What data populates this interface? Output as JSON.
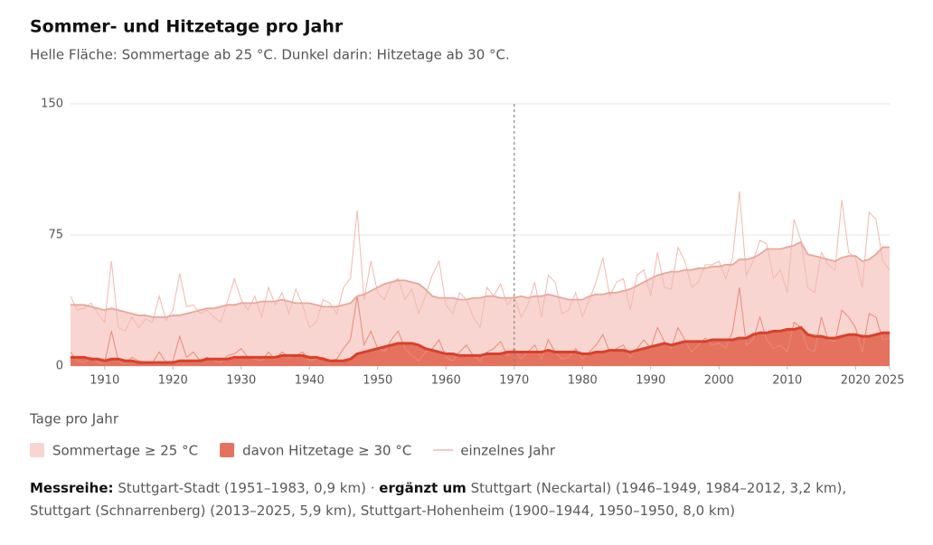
{
  "chart_data": {
    "type": "area",
    "title": "Sommer- und Hitzetage pro Jahr",
    "subtitle": "Helle Fläche: Sommertage ab 25 °C. Dunkel darin: Hitzetage ab 30 °C.",
    "y_label": "Tage pro Jahr",
    "x": [
      1905,
      1906,
      1907,
      1908,
      1909,
      1910,
      1911,
      1912,
      1913,
      1914,
      1915,
      1916,
      1917,
      1918,
      1919,
      1920,
      1921,
      1922,
      1923,
      1924,
      1925,
      1926,
      1927,
      1928,
      1929,
      1930,
      1931,
      1932,
      1933,
      1934,
      1935,
      1936,
      1937,
      1938,
      1939,
      1940,
      1941,
      1942,
      1943,
      1944,
      1945,
      1946,
      1947,
      1948,
      1949,
      1950,
      1951,
      1952,
      1953,
      1954,
      1955,
      1956,
      1957,
      1958,
      1959,
      1960,
      1961,
      1962,
      1963,
      1964,
      1965,
      1966,
      1967,
      1968,
      1969,
      1970,
      1971,
      1972,
      1973,
      1974,
      1975,
      1976,
      1977,
      1978,
      1979,
      1980,
      1981,
      1982,
      1983,
      1984,
      1985,
      1986,
      1987,
      1988,
      1989,
      1990,
      1991,
      1992,
      1993,
      1994,
      1995,
      1996,
      1997,
      1998,
      1999,
      2000,
      2001,
      2002,
      2003,
      2004,
      2005,
      2006,
      2007,
      2008,
      2009,
      2010,
      2011,
      2012,
      2013,
      2014,
      2015,
      2016,
      2017,
      2018,
      2019,
      2020,
      2021,
      2022,
      2023,
      2024,
      2025
    ],
    "xlim": [
      1905,
      2025
    ],
    "xticks": [
      1910,
      1920,
      1930,
      1940,
      1950,
      1960,
      1970,
      1980,
      1990,
      2000,
      2010,
      2020,
      2025
    ],
    "ylim": [
      0,
      150
    ],
    "yticks": [
      0,
      75,
      150
    ],
    "grid": true,
    "vline_x": 1970,
    "yearly_legend": "einzelnes Jahr",
    "series": [
      {
        "name": "Sommertage ≥ 25 °C",
        "color": "#f8d5d0",
        "line_color": "#e9a69c",
        "yearly_color": "#f1b8b0",
        "values": [
          35,
          35,
          35,
          34,
          33,
          32,
          33,
          32,
          31,
          30,
          29,
          29,
          28,
          28,
          28,
          29,
          29,
          30,
          31,
          32,
          33,
          33,
          34,
          35,
          35,
          36,
          36,
          36,
          37,
          37,
          37,
          38,
          37,
          36,
          36,
          36,
          35,
          34,
          34,
          34,
          35,
          36,
          40,
          41,
          43,
          45,
          47,
          48,
          49,
          49,
          48,
          47,
          44,
          40,
          39,
          39,
          39,
          38,
          38,
          39,
          39,
          40,
          40,
          39,
          39,
          39,
          40,
          39,
          40,
          40,
          41,
          40,
          39,
          38,
          38,
          38,
          40,
          41,
          41,
          42,
          42,
          43,
          44,
          46,
          48,
          50,
          52,
          53,
          54,
          54,
          55,
          55,
          56,
          56,
          57,
          57,
          58,
          58,
          61,
          61,
          62,
          64,
          67,
          67,
          67,
          68,
          69,
          71,
          64,
          63,
          62,
          61,
          60,
          62,
          63,
          63,
          60,
          61,
          64,
          68,
          68
        ],
        "yearly": [
          40,
          32,
          33,
          36,
          30,
          25,
          60,
          22,
          20,
          28,
          22,
          27,
          25,
          40,
          26,
          32,
          53,
          34,
          35,
          30,
          32,
          28,
          25,
          37,
          50,
          38,
          32,
          40,
          28,
          45,
          35,
          42,
          30,
          44,
          35,
          22,
          25,
          38,
          36,
          30,
          45,
          50,
          89,
          38,
          60,
          42,
          38,
          48,
          50,
          38,
          44,
          30,
          40,
          52,
          60,
          35,
          30,
          42,
          38,
          28,
          22,
          45,
          40,
          47,
          35,
          40,
          28,
          35,
          48,
          28,
          52,
          48,
          30,
          32,
          42,
          28,
          38,
          48,
          62,
          40,
          48,
          50,
          32,
          52,
          55,
          40,
          65,
          45,
          44,
          68,
          60,
          45,
          48,
          58,
          58,
          60,
          50,
          62,
          100,
          52,
          60,
          72,
          70,
          50,
          55,
          42,
          84,
          72,
          45,
          42,
          65,
          58,
          55,
          95,
          65,
          62,
          45,
          88,
          84,
          60,
          55
        ]
      },
      {
        "name": "davon Hitzetage ≥ 30 °C",
        "color": "#e4725e",
        "line_color": "#d8412c",
        "yearly_color": "#e98a7b",
        "values": [
          5,
          5,
          5,
          4,
          4,
          3,
          4,
          4,
          3,
          3,
          2,
          2,
          2,
          2,
          2,
          2,
          3,
          3,
          3,
          3,
          4,
          4,
          4,
          4,
          5,
          5,
          5,
          5,
          5,
          5,
          5,
          6,
          6,
          6,
          6,
          5,
          5,
          4,
          3,
          3,
          3,
          4,
          7,
          8,
          9,
          10,
          11,
          12,
          13,
          13,
          13,
          12,
          10,
          9,
          8,
          7,
          7,
          6,
          6,
          6,
          6,
          7,
          7,
          7,
          8,
          8,
          8,
          8,
          8,
          8,
          9,
          8,
          8,
          8,
          8,
          7,
          7,
          8,
          8,
          9,
          9,
          9,
          8,
          9,
          10,
          11,
          12,
          13,
          12,
          13,
          14,
          14,
          14,
          14,
          15,
          15,
          15,
          15,
          16,
          16,
          18,
          19,
          19,
          20,
          20,
          21,
          21,
          22,
          18,
          17,
          17,
          16,
          16,
          17,
          18,
          18,
          17,
          17,
          18,
          19,
          19
        ],
        "yearly": [
          8,
          3,
          2,
          5,
          2,
          2,
          20,
          3,
          1,
          5,
          3,
          2,
          2,
          8,
          2,
          3,
          17,
          5,
          8,
          3,
          5,
          3,
          2,
          6,
          7,
          10,
          5,
          4,
          3,
          8,
          4,
          8,
          5,
          6,
          8,
          3,
          4,
          5,
          3,
          4,
          10,
          15,
          40,
          12,
          20,
          10,
          8,
          15,
          20,
          10,
          6,
          3,
          8,
          10,
          15,
          5,
          3,
          8,
          12,
          6,
          3,
          8,
          10,
          14,
          6,
          10,
          4,
          8,
          12,
          4,
          15,
          8,
          4,
          5,
          10,
          4,
          8,
          12,
          18,
          8,
          10,
          12,
          5,
          10,
          15,
          10,
          22,
          14,
          10,
          22,
          15,
          8,
          12,
          16,
          12,
          13,
          10,
          20,
          45,
          12,
          15,
          28,
          15,
          10,
          12,
          8,
          25,
          22,
          10,
          8,
          28,
          15,
          14,
          32,
          28,
          22,
          8,
          30,
          28,
          15,
          16
        ]
      }
    ],
    "note": {
      "label1": "Messreihe:",
      "text1": "Stuttgart-Stadt (1951–1983, 0,9 km) ·",
      "label2": "ergänzt um",
      "text2": "Stuttgart (Neckartal) (1946–1949, 1984–2012, 3,2 km), Stuttgart (Schnarrenberg) (2013–2025, 5,9 km), Stuttgart-Hohenheim (1900–1944, 1950–1950, 8,0 km)"
    }
  }
}
